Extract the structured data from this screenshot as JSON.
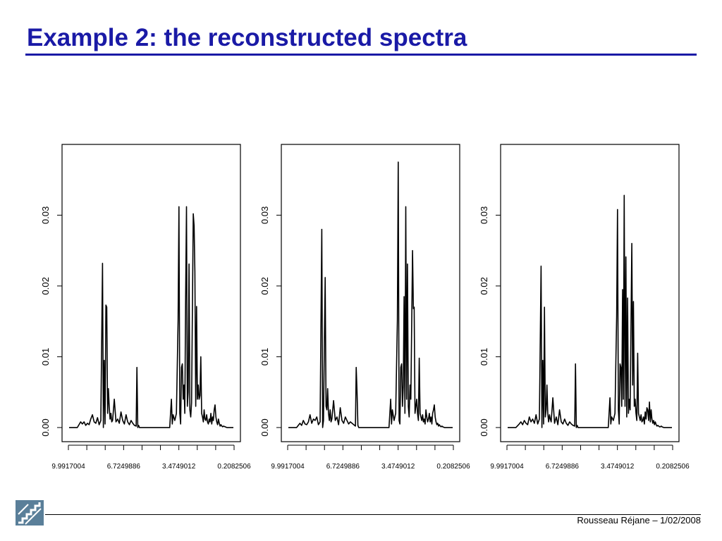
{
  "slide": {
    "title": "Example 2: the reconstructed spectra",
    "footer": "Rousseau Réjane – 1/02/2008",
    "accent_color": "#1a1aa6",
    "logo_icon": "stairs-logo-icon"
  },
  "chart_data": [
    {
      "type": "line",
      "title": "",
      "xlabel": "",
      "ylabel": "",
      "ylim": [
        -0.0015,
        0.039
      ],
      "yticks": [
        "0.00",
        "0.01",
        "0.02",
        "0.03"
      ],
      "xticks": [
        "9.9917004",
        "6.7249886",
        "3.4749012",
        "0.2082506"
      ],
      "x_reversed": true,
      "grid": false,
      "series": [
        {
          "x": [
            9.99,
            9.5,
            9.3,
            9.2,
            9.1,
            9.0,
            8.9,
            8.8,
            8.7,
            8.6,
            8.5,
            8.4,
            8.3,
            8.2,
            8.1,
            8.0,
            7.95,
            7.9,
            7.85,
            7.8,
            7.75,
            7.7,
            7.65,
            7.6,
            7.55,
            7.5,
            7.45,
            7.4,
            7.3,
            7.2,
            7.1,
            7.0,
            6.9,
            6.8,
            6.7,
            6.6,
            6.5,
            6.4,
            6.3,
            6.2,
            6.1,
            6.0,
            5.95,
            5.9,
            5.85,
            5.8,
            5.0,
            4.0,
            3.9,
            3.85,
            3.8,
            3.7,
            3.6,
            3.5,
            3.45,
            3.4,
            3.35,
            3.3,
            3.25,
            3.2,
            3.15,
            3.1,
            3.05,
            3.0,
            2.95,
            2.9,
            2.85,
            2.8,
            2.75,
            2.7,
            2.6,
            2.55,
            2.5,
            2.45,
            2.4,
            2.35,
            2.3,
            2.25,
            2.2,
            2.15,
            2.1,
            2.05,
            2.0,
            1.95,
            1.9,
            1.85,
            1.8,
            1.75,
            1.7,
            1.65,
            1.6,
            1.55,
            1.5,
            1.45,
            1.4,
            1.35,
            1.3,
            1.25,
            1.2,
            1.15,
            1.1,
            1.05,
            1.0,
            0.95,
            0.9,
            0.85,
            0.8,
            0.7,
            0.6,
            0.5,
            0.4,
            0.3,
            0.21
          ],
          "values": [
            0.0,
            0.0,
            0.0008,
            0.0005,
            0.0008,
            0.0003,
            0.0006,
            0.0004,
            0.0012,
            0.0018,
            0.0008,
            0.0006,
            0.0014,
            0.0004,
            0.001,
            0.0232,
            0.0,
            0.0095,
            0.0005,
            0.0173,
            0.017,
            0.002,
            0.0055,
            0.003,
            0.0012,
            0.002,
            0.0008,
            0.001,
            0.004,
            0.0008,
            0.0012,
            0.0006,
            0.0022,
            0.001,
            0.0005,
            0.0018,
            0.0008,
            0.0004,
            0.001,
            0.0006,
            0.0003,
            0.0002,
            0.0085,
            0.0,
            0.0003,
            0.0,
            0.0,
            0.0,
            0.004,
            0.0005,
            0.0018,
            0.001,
            0.002,
            0.0152,
            0.0312,
            0.002,
            0.0005,
            0.0085,
            0.009,
            0.004,
            0.006,
            0.002,
            0.0185,
            0.0312,
            0.003,
            0.005,
            0.0231,
            0.0025,
            0.0015,
            0.0035,
            0.0302,
            0.0285,
            0.022,
            0.003,
            0.0171,
            0.004,
            0.006,
            0.004,
            0.0045,
            0.01,
            0.002,
            0.0015,
            0.0008,
            0.0025,
            0.0012,
            0.001,
            0.0018,
            0.0008,
            0.0005,
            0.0012,
            0.0008,
            0.002,
            0.0005,
            0.0015,
            0.001,
            0.0025,
            0.0032,
            0.0015,
            0.0008,
            0.0004,
            0.0012,
            0.0006,
            0.0002,
            0.0004,
            0.0002,
            0.0001,
            0.0002,
            0.0001,
            0.0,
            0.0,
            0.0,
            0.0,
            0.0
          ]
        }
      ]
    },
    {
      "type": "line",
      "title": "",
      "xlabel": "",
      "ylabel": "",
      "ylim": [
        -0.0015,
        0.039
      ],
      "yticks": [
        "0.00",
        "0.01",
        "0.02",
        "0.03"
      ],
      "xticks": [
        "9.9917004",
        "6.7249886",
        "3.4749012",
        "0.2082506"
      ],
      "x_reversed": true,
      "grid": false,
      "series": [
        {
          "x": [
            9.99,
            9.5,
            9.3,
            9.2,
            9.1,
            9.0,
            8.9,
            8.8,
            8.7,
            8.6,
            8.5,
            8.4,
            8.3,
            8.2,
            8.1,
            8.0,
            7.95,
            7.9,
            7.85,
            7.8,
            7.75,
            7.7,
            7.65,
            7.6,
            7.55,
            7.5,
            7.45,
            7.4,
            7.3,
            7.2,
            7.1,
            7.0,
            6.9,
            6.8,
            6.7,
            6.6,
            6.5,
            6.4,
            6.3,
            6.2,
            6.1,
            6.0,
            5.95,
            5.9,
            5.85,
            5.8,
            5.0,
            4.0,
            3.9,
            3.85,
            3.8,
            3.7,
            3.6,
            3.5,
            3.45,
            3.4,
            3.35,
            3.3,
            3.25,
            3.2,
            3.15,
            3.1,
            3.05,
            3.0,
            2.95,
            2.9,
            2.85,
            2.8,
            2.75,
            2.7,
            2.6,
            2.55,
            2.5,
            2.45,
            2.4,
            2.35,
            2.3,
            2.25,
            2.2,
            2.15,
            2.1,
            2.05,
            2.0,
            1.95,
            1.9,
            1.85,
            1.8,
            1.75,
            1.7,
            1.65,
            1.6,
            1.55,
            1.5,
            1.45,
            1.4,
            1.35,
            1.3,
            1.25,
            1.2,
            1.15,
            1.1,
            1.05,
            1.0,
            0.95,
            0.9,
            0.85,
            0.8,
            0.7,
            0.6,
            0.5,
            0.4,
            0.3,
            0.21
          ],
          "values": [
            0.0,
            0.0,
            0.0006,
            0.0003,
            0.001,
            0.0005,
            0.0004,
            0.0008,
            0.0018,
            0.0006,
            0.0012,
            0.001,
            0.0015,
            0.0004,
            0.0008,
            0.028,
            0.0,
            0.001,
            0.0115,
            0.0212,
            0.003,
            0.0025,
            0.0055,
            0.002,
            0.001,
            0.0025,
            0.0008,
            0.0012,
            0.0038,
            0.001,
            0.0015,
            0.0004,
            0.0028,
            0.001,
            0.0006,
            0.0015,
            0.001,
            0.0005,
            0.0008,
            0.0006,
            0.0004,
            0.0002,
            0.0085,
            0.005,
            0.0003,
            0.0,
            0.0,
            0.0,
            0.004,
            0.0005,
            0.0025,
            0.001,
            0.002,
            0.0152,
            0.0375,
            0.001,
            0.0005,
            0.0085,
            0.009,
            0.003,
            0.006,
            0.0185,
            0.002,
            0.0312,
            0.004,
            0.0231,
            0.003,
            0.0015,
            0.006,
            0.004,
            0.025,
            0.0168,
            0.017,
            0.002,
            0.003,
            0.004,
            0.002,
            0.001,
            0.0098,
            0.002,
            0.0015,
            0.001,
            0.0018,
            0.0008,
            0.0012,
            0.0005,
            0.0025,
            0.0015,
            0.0008,
            0.0012,
            0.002,
            0.0008,
            0.0015,
            0.0005,
            0.002,
            0.0025,
            0.0032,
            0.0015,
            0.0008,
            0.0004,
            0.0006,
            0.0002,
            0.0004,
            0.0002,
            0.0001,
            0.0002,
            0.0001,
            0.0,
            0.0,
            0.0,
            0.0,
            0.0,
            0.0
          ]
        }
      ]
    },
    {
      "type": "line",
      "title": "",
      "xlabel": "",
      "ylabel": "",
      "ylim": [
        -0.0015,
        0.039
      ],
      "yticks": [
        "0.00",
        "0.01",
        "0.02",
        "0.03"
      ],
      "xticks": [
        "9.9917004",
        "6.7249886",
        "3.4749012",
        "0.2082506"
      ],
      "x_reversed": true,
      "grid": false,
      "series": [
        {
          "x": [
            9.99,
            9.5,
            9.3,
            9.2,
            9.1,
            9.0,
            8.9,
            8.8,
            8.7,
            8.6,
            8.5,
            8.4,
            8.3,
            8.2,
            8.1,
            8.0,
            7.95,
            7.9,
            7.85,
            7.8,
            7.75,
            7.7,
            7.65,
            7.6,
            7.55,
            7.5,
            7.45,
            7.4,
            7.3,
            7.2,
            7.1,
            7.0,
            6.9,
            6.8,
            6.7,
            6.6,
            6.5,
            6.4,
            6.3,
            6.2,
            6.1,
            6.0,
            5.95,
            5.9,
            5.85,
            5.8,
            5.0,
            4.0,
            3.9,
            3.85,
            3.8,
            3.7,
            3.6,
            3.5,
            3.45,
            3.4,
            3.35,
            3.3,
            3.25,
            3.2,
            3.15,
            3.1,
            3.05,
            3.0,
            2.95,
            2.9,
            2.85,
            2.8,
            2.75,
            2.7,
            2.6,
            2.55,
            2.5,
            2.45,
            2.4,
            2.35,
            2.3,
            2.25,
            2.2,
            2.15,
            2.1,
            2.05,
            2.0,
            1.95,
            1.9,
            1.85,
            1.8,
            1.75,
            1.7,
            1.65,
            1.6,
            1.55,
            1.5,
            1.45,
            1.4,
            1.35,
            1.3,
            1.25,
            1.2,
            1.15,
            1.1,
            1.05,
            1.0,
            0.95,
            0.9,
            0.85,
            0.8,
            0.7,
            0.6,
            0.5,
            0.4,
            0.3,
            0.21
          ],
          "values": [
            0.0,
            0.0,
            0.0005,
            0.0008,
            0.0004,
            0.001,
            0.0006,
            0.0004,
            0.0015,
            0.0008,
            0.0012,
            0.0006,
            0.0018,
            0.0005,
            0.0012,
            0.0228,
            0.0,
            0.0095,
            0.0005,
            0.017,
            0.0015,
            0.0025,
            0.006,
            0.002,
            0.0008,
            0.0018,
            0.0012,
            0.0008,
            0.0042,
            0.0006,
            0.0015,
            0.0004,
            0.0025,
            0.0008,
            0.0005,
            0.0012,
            0.0006,
            0.0003,
            0.0008,
            0.0005,
            0.0003,
            0.0002,
            0.009,
            0.0,
            0.0003,
            0.0,
            0.0,
            0.0,
            0.0042,
            0.0005,
            0.0015,
            0.001,
            0.002,
            0.0158,
            0.0308,
            0.0025,
            0.0005,
            0.009,
            0.0085,
            0.003,
            0.0195,
            0.004,
            0.0328,
            0.003,
            0.0241,
            0.0015,
            0.0183,
            0.002,
            0.004,
            0.0025,
            0.026,
            0.006,
            0.0178,
            0.003,
            0.004,
            0.002,
            0.001,
            0.0105,
            0.002,
            0.0015,
            0.001,
            0.0018,
            0.0008,
            0.001,
            0.0015,
            0.0005,
            0.0022,
            0.0012,
            0.0028,
            0.0025,
            0.001,
            0.0036,
            0.0008,
            0.0025,
            0.0012,
            0.0006,
            0.001,
            0.0004,
            0.0008,
            0.0004,
            0.0002,
            0.0003,
            0.0002,
            0.0001,
            0.0001,
            0.0002,
            0.0001,
            0.0,
            0.0,
            0.0,
            0.0,
            0.0,
            0.0
          ]
        }
      ]
    }
  ]
}
